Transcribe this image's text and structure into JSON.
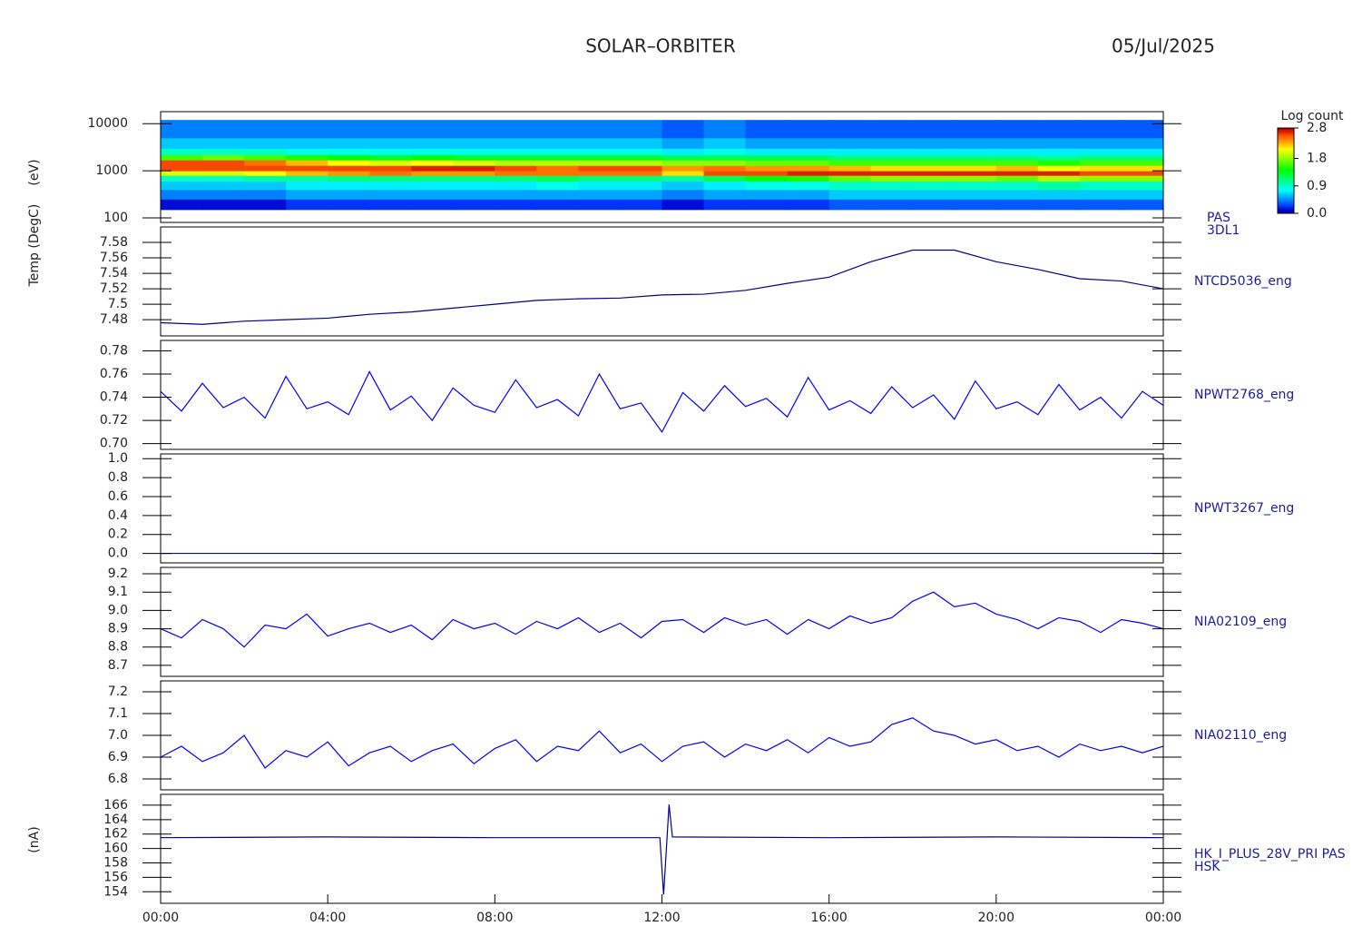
{
  "header": {
    "title": "SOLAR–ORBITER",
    "date": "05/Jul/2025"
  },
  "chart_data": [
    {
      "type": "heatmap",
      "label": [
        "PAS",
        "3DL1"
      ],
      "ylabel": "(eV)",
      "log": true,
      "x_edges": [
        0,
        1,
        2,
        3,
        4,
        5,
        6,
        7,
        8,
        9,
        10,
        11,
        12,
        13,
        14,
        15,
        16,
        17,
        18,
        19,
        20,
        21,
        22,
        23,
        24
      ],
      "y_edges": [
        150,
        250,
        400,
        600,
        800,
        1000,
        1300,
        1700,
        2200,
        3000,
        5000,
        12000
      ],
      "z": [
        [
          0.1,
          0.4,
          0.6,
          0.9,
          2.0,
          2.6,
          2.6,
          1.6,
          0.9,
          0.6,
          0.4
        ],
        [
          0.1,
          0.4,
          0.6,
          0.9,
          2.0,
          2.6,
          2.6,
          1.7,
          0.9,
          0.6,
          0.4
        ],
        [
          0.1,
          0.4,
          0.6,
          1.0,
          2.1,
          2.6,
          2.5,
          1.6,
          0.9,
          0.6,
          0.4
        ],
        [
          0.2,
          0.5,
          0.7,
          1.0,
          2.3,
          2.6,
          2.3,
          1.5,
          0.8,
          0.6,
          0.4
        ],
        [
          0.2,
          0.5,
          0.7,
          1.1,
          2.4,
          2.6,
          2.1,
          1.4,
          0.8,
          0.6,
          0.4
        ],
        [
          0.2,
          0.5,
          0.7,
          1.1,
          2.5,
          2.6,
          2.0,
          1.3,
          0.8,
          0.6,
          0.4
        ],
        [
          0.2,
          0.5,
          0.7,
          1.1,
          2.4,
          2.7,
          2.1,
          1.4,
          0.8,
          0.6,
          0.4
        ],
        [
          0.2,
          0.5,
          0.7,
          1.1,
          2.4,
          2.7,
          2.0,
          1.3,
          0.8,
          0.6,
          0.4
        ],
        [
          0.2,
          0.5,
          0.7,
          1.1,
          2.5,
          2.6,
          1.9,
          1.3,
          0.8,
          0.6,
          0.4
        ],
        [
          0.2,
          0.5,
          0.8,
          1.2,
          2.5,
          2.5,
          1.9,
          1.3,
          0.8,
          0.6,
          0.4
        ],
        [
          0.2,
          0.5,
          0.7,
          1.1,
          2.5,
          2.6,
          1.9,
          1.3,
          0.8,
          0.6,
          0.4
        ],
        [
          0.2,
          0.5,
          0.7,
          1.1,
          2.5,
          2.6,
          1.9,
          1.3,
          0.8,
          0.6,
          0.4
        ],
        [
          0.1,
          0.4,
          0.6,
          1.0,
          2.2,
          2.4,
          1.8,
          1.2,
          0.7,
          0.5,
          0.3
        ],
        [
          0.2,
          0.5,
          0.7,
          1.2,
          2.6,
          2.5,
          1.8,
          1.2,
          0.8,
          0.6,
          0.4
        ],
        [
          0.2,
          0.5,
          0.8,
          1.4,
          2.6,
          2.4,
          1.7,
          1.2,
          0.7,
          0.5,
          0.3
        ],
        [
          0.2,
          0.5,
          0.8,
          1.5,
          2.7,
          2.4,
          1.7,
          1.2,
          0.7,
          0.5,
          0.3
        ],
        [
          0.3,
          0.6,
          0.9,
          1.7,
          2.7,
          2.3,
          1.6,
          1.1,
          0.7,
          0.5,
          0.3
        ],
        [
          0.3,
          0.6,
          0.9,
          1.8,
          2.7,
          2.2,
          1.6,
          1.1,
          0.7,
          0.5,
          0.3
        ],
        [
          0.3,
          0.6,
          0.9,
          1.8,
          2.7,
          2.2,
          1.6,
          1.1,
          0.7,
          0.5,
          0.3
        ],
        [
          0.3,
          0.6,
          0.9,
          1.8,
          2.7,
          2.2,
          1.6,
          1.1,
          0.7,
          0.5,
          0.3
        ],
        [
          0.3,
          0.6,
          0.9,
          1.7,
          2.7,
          2.3,
          1.6,
          1.1,
          0.7,
          0.5,
          0.3
        ],
        [
          0.3,
          0.6,
          1.0,
          1.9,
          2.7,
          2.1,
          1.5,
          1.0,
          0.7,
          0.5,
          0.3
        ],
        [
          0.3,
          0.6,
          0.9,
          1.8,
          2.6,
          2.2,
          1.6,
          1.1,
          0.7,
          0.5,
          0.3
        ],
        [
          0.3,
          0.6,
          0.9,
          1.8,
          2.6,
          2.2,
          1.6,
          1.1,
          0.7,
          0.5,
          0.3
        ]
      ],
      "xlim": [
        0,
        24
      ],
      "ylim": [
        80,
        18000
      ],
      "yticks": [
        100,
        1000,
        10000
      ],
      "zlabel": "Log count",
      "zlim": [
        0,
        2.8
      ],
      "zticks": [
        {
          "value": 0,
          "label": "0.0"
        },
        0.9,
        1.8,
        2.8
      ]
    },
    {
      "type": "line",
      "label": [
        "NTCD5036_eng"
      ],
      "ylabel": "Temp (DegC)",
      "color": "#00008b",
      "x": [
        0,
        1,
        2,
        3,
        4,
        5,
        6,
        7,
        8,
        9,
        10,
        11,
        12,
        13,
        14,
        15,
        16,
        17,
        18,
        19,
        20,
        21,
        22,
        23,
        24
      ],
      "values": [
        7.476,
        7.474,
        7.478,
        7.48,
        7.482,
        7.487,
        7.49,
        7.495,
        7.5,
        7.505,
        7.507,
        7.508,
        7.512,
        7.513,
        7.518,
        7.527,
        7.535,
        7.555,
        7.57,
        7.57,
        7.555,
        7.545,
        7.533,
        7.53,
        7.52
      ],
      "xlim": [
        0,
        24
      ],
      "ylim": [
        7.459,
        7.6
      ],
      "yticks": [
        7.48,
        7.5,
        7.52,
        7.54,
        7.56,
        7.58
      ]
    },
    {
      "type": "line",
      "label": [
        "NPWT2768_eng"
      ],
      "color": "#0000ff",
      "x": [
        0,
        0.5,
        1,
        1.5,
        2,
        2.5,
        3,
        3.5,
        4,
        4.5,
        5,
        5.5,
        6,
        6.5,
        7,
        7.5,
        8,
        8.5,
        9,
        9.5,
        10,
        10.5,
        11,
        11.5,
        12,
        12.5,
        13,
        13.5,
        14,
        14.5,
        15,
        15.5,
        16,
        16.5,
        17,
        17.5,
        18,
        18.5,
        19,
        19.5,
        20,
        20.5,
        21,
        21.5,
        22,
        22.5,
        23,
        23.5,
        24
      ],
      "values": [
        0.745,
        0.728,
        0.752,
        0.731,
        0.74,
        0.722,
        0.758,
        0.73,
        0.736,
        0.725,
        0.762,
        0.729,
        0.741,
        0.72,
        0.748,
        0.733,
        0.727,
        0.755,
        0.731,
        0.738,
        0.724,
        0.76,
        0.73,
        0.735,
        0.71,
        0.744,
        0.728,
        0.75,
        0.732,
        0.739,
        0.723,
        0.757,
        0.729,
        0.737,
        0.726,
        0.749,
        0.731,
        0.742,
        0.721,
        0.754,
        0.73,
        0.736,
        0.725,
        0.751,
        0.729,
        0.74,
        0.722,
        0.745,
        0.733
      ],
      "xlim": [
        0,
        24
      ],
      "ylim": [
        0.695,
        0.789
      ],
      "yticks": [
        {
          "value": 0.7,
          "label": "0.70"
        },
        0.72,
        0.74,
        0.76,
        0.78
      ]
    },
    {
      "type": "line",
      "label": [
        "NPWT3267_eng"
      ],
      "color": "#0000ff",
      "x": [
        0,
        24
      ],
      "values": [
        0,
        0
      ],
      "xlim": [
        0,
        24
      ],
      "ylim": [
        -0.1,
        1.05
      ],
      "yticks": [
        {
          "value": 0,
          "label": "0.0"
        },
        0.2,
        0.4,
        0.6,
        0.8,
        {
          "value": 1,
          "label": "1.0"
        }
      ]
    },
    {
      "type": "line",
      "label": [
        "NIA02109_eng"
      ],
      "color": "#0000ff",
      "x": [
        0,
        0.5,
        1,
        1.5,
        2,
        2.5,
        3,
        3.5,
        4,
        4.5,
        5,
        5.5,
        6,
        6.5,
        7,
        7.5,
        8,
        8.5,
        9,
        9.5,
        10,
        10.5,
        11,
        11.5,
        12,
        12.5,
        13,
        13.5,
        14,
        14.5,
        15,
        15.5,
        16,
        16.5,
        17,
        17.5,
        18,
        18.5,
        19,
        19.5,
        20,
        20.5,
        21,
        21.5,
        22,
        22.5,
        23,
        23.5,
        24
      ],
      "values": [
        8.9,
        8.85,
        8.95,
        8.9,
        8.8,
        8.92,
        8.9,
        8.98,
        8.86,
        8.9,
        8.93,
        8.88,
        8.92,
        8.84,
        8.95,
        8.9,
        8.93,
        8.87,
        8.94,
        8.9,
        8.96,
        8.88,
        8.93,
        8.85,
        8.94,
        8.95,
        8.88,
        8.96,
        8.92,
        8.95,
        8.87,
        8.95,
        8.9,
        8.97,
        8.93,
        8.96,
        9.05,
        9.1,
        9.02,
        9.04,
        8.98,
        8.95,
        8.9,
        8.96,
        8.94,
        8.88,
        8.95,
        8.93,
        8.9
      ],
      "xlim": [
        0,
        24
      ],
      "ylim": [
        8.64,
        9.235
      ],
      "yticks": [
        8.7,
        8.8,
        8.9,
        {
          "value": 9,
          "label": "9.0"
        },
        9.1,
        9.2
      ]
    },
    {
      "type": "line",
      "label": [
        "NIA02110_eng"
      ],
      "color": "#0000ff",
      "x": [
        0,
        0.5,
        1,
        1.5,
        2,
        2.5,
        3,
        3.5,
        4,
        4.5,
        5,
        5.5,
        6,
        6.5,
        7,
        7.5,
        8,
        8.5,
        9,
        9.5,
        10,
        10.5,
        11,
        11.5,
        12,
        12.5,
        13,
        13.5,
        14,
        14.5,
        15,
        15.5,
        16,
        16.5,
        17,
        17.5,
        18,
        18.5,
        19,
        19.5,
        20,
        20.5,
        21,
        21.5,
        22,
        22.5,
        23,
        23.5,
        24
      ],
      "values": [
        6.9,
        6.95,
        6.88,
        6.92,
        7.0,
        6.85,
        6.93,
        6.9,
        6.97,
        6.86,
        6.92,
        6.95,
        6.88,
        6.93,
        6.96,
        6.87,
        6.94,
        6.98,
        6.88,
        6.95,
        6.93,
        7.02,
        6.92,
        6.96,
        6.88,
        6.95,
        6.97,
        6.9,
        6.96,
        6.93,
        6.98,
        6.92,
        6.99,
        6.95,
        6.97,
        7.05,
        7.08,
        7.02,
        7.0,
        6.96,
        6.98,
        6.93,
        6.95,
        6.9,
        6.96,
        6.93,
        6.95,
        6.92,
        6.95
      ],
      "xlim": [
        0,
        24
      ],
      "ylim": [
        6.75,
        7.25
      ],
      "yticks": [
        6.8,
        6.9,
        {
          "value": 7,
          "label": "7.0"
        },
        7.1,
        7.2
      ]
    },
    {
      "type": "line",
      "label": [
        "HK_I_PLUS_28V_PRI PAS",
        "HSK"
      ],
      "ylabel": "(nA)",
      "color": "#00008b",
      "x": [
        0,
        4,
        8,
        11.95,
        12.04,
        12.17,
        12.25,
        16,
        20,
        24
      ],
      "values": [
        161.5,
        161.6,
        161.5,
        161.5,
        153.6,
        166.1,
        161.6,
        161.5,
        161.6,
        161.5
      ],
      "xlim": [
        0,
        24
      ],
      "ylim": [
        152.4,
        167.5
      ],
      "yticks": [
        154,
        156,
        158,
        160,
        162,
        164,
        166
      ],
      "xticks": [
        {
          "value": 0,
          "label": "00:00"
        },
        {
          "value": 4,
          "label": "04:00"
        },
        {
          "value": 8,
          "label": "08:00"
        },
        {
          "value": 12,
          "label": "12:00"
        },
        {
          "value": 16,
          "label": "16:00"
        },
        {
          "value": 20,
          "label": "20:00"
        },
        {
          "value": 24,
          "label": "00:00"
        }
      ]
    }
  ]
}
